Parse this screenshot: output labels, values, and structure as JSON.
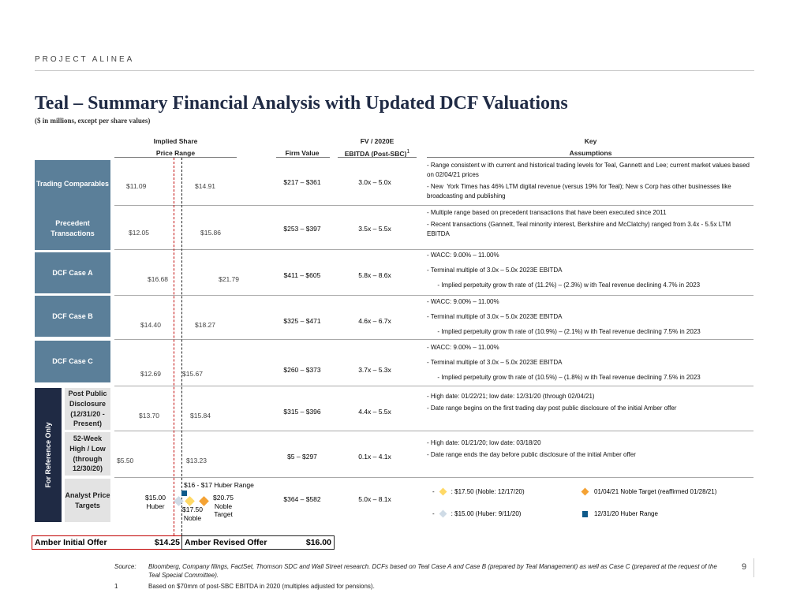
{
  "header": {
    "project": "PROJECT ALINEA",
    "title": "Teal – Summary Financial Analysis with Updated DCF Valuations",
    "subtitle": "($ in millions, except per share values)"
  },
  "columns": {
    "price_1": "Implied Share",
    "price_2": "Price Range",
    "firm_value": "Firm Value",
    "mult_1": "FV / 2020E",
    "mult_2": "EBITDA (Post-SBC)",
    "mult_sup": "1",
    "key_1": "Key",
    "key_2": "Assumptions"
  },
  "rows": [
    {
      "label": "Trading Comparables",
      "low": "$11.09",
      "high": "$14.91",
      "firm_value": "$217 – $361",
      "multiple": "3.0x – 5.0x",
      "assumptions": [
        "- Range consistent w ith current and historical trading levels for Teal, Gannett and Lee; current market values based on 02/04/21 prices",
        "- New  York Times has 46% LTM digital revenue (versus 19% for Teal); New s Corp has other businesses like broadcasting and publishing"
      ]
    },
    {
      "label": "Precedent Transactions",
      "low": "$12.05",
      "high": "$15.86",
      "firm_value": "$253 – $397",
      "multiple": "3.5x – 5.5x",
      "assumptions": [
        "- Multiple range based on precedent transactions that have been executed since 2011",
        "- Recent transactions (Gannett, Teal minority interest, Berkshire and McClatchy) ranged from 3.4x - 5.5x LTM EBITDA"
      ]
    },
    {
      "label": "DCF Case A",
      "low": "$16.68",
      "high": "$21.79",
      "firm_value": "$411 – $605",
      "multiple": "5.8x – 8.6x",
      "assumptions": [
        "- WACC: 9.00% – 11.00%",
        "- Terminal multiple of 3.0x – 5.0x 2023E EBITDA",
        "      - Implied perpetuity grow th rate of (11.2%) – (2.3%) w ith Teal revenue declining 4.7% in 2023"
      ]
    },
    {
      "label": "DCF Case B",
      "low": "$14.40",
      "high": "$18.27",
      "firm_value": "$325 – $471",
      "multiple": "4.6x – 6.7x",
      "assumptions": [
        "- WACC: 9.00% – 11.00%",
        "- Terminal multiple of 3.0x – 5.0x 2023E EBITDA",
        "      - Implied perpetuity grow th rate of (10.9%) – (2.1%) w ith Teal revenue declining 7.5% in 2023"
      ]
    },
    {
      "label": "DCF Case C",
      "low": "$12.69",
      "high": "$15.67",
      "firm_value": "$260 – $373",
      "multiple": "3.7x – 5.3x",
      "assumptions": [
        "- WACC: 9.00% – 11.00%",
        "- Terminal multiple of 3.0x – 5.0x 2023E EBITDA",
        "      - Implied perpetuity grow th rate of (10.5%) – (1.8%) w ith Teal revenue declining 7.5% in 2023"
      ]
    },
    {
      "label": "Post Public Disclosure (12/31/20 - Present)",
      "low": "$13.70",
      "high": "$15.84",
      "firm_value": "$315 – $396",
      "multiple": "4.4x – 5.5x",
      "assumptions": [
        "- High date: 01/22/21; low date: 12/31/20 (through 02/04/21)",
        "- Date range begins on the first trading day post public disclosure of the initial Amber offer"
      ]
    },
    {
      "label": "52-Week High / Low (through 12/30/20)",
      "low": "$5.50",
      "high": "$13.23",
      "firm_value": "$5 – $297",
      "multiple": "0.1x – 4.1x",
      "assumptions": [
        "- High date: 01/21/20; low date: 03/18/20",
        "- Date range ends the day before public disclosure of the initial Amber offer"
      ]
    },
    {
      "label": "Analyst Price Targets",
      "firm_value": "$364 – $582",
      "multiple": "5.0x – 8.1x"
    }
  ],
  "reference_label": "For Reference Only",
  "analyst": {
    "huber_range": "$16 - $17 Huber Range",
    "huber": "$15.00\nHuber",
    "noble": "$17.50\nNoble",
    "noble_target": "$20.75\nNoble\nTarget"
  },
  "legend": {
    "noble": ": $17.50 (Noble: 12/17/20)",
    "huber": ": $15.00 (Huber: 9/11/20)",
    "noble_target": "01/04/21 Noble Target (reaffirmed 01/28/21)",
    "huber_range": "12/31/20 Huber Range"
  },
  "offers": {
    "initial_label": "Amber Initial Offer",
    "initial_value": "$14.25",
    "revised_label": "Amber Revised Offer",
    "revised_value": "$16.00"
  },
  "footer": {
    "source_label": "Source:",
    "source": "Bloomberg, Company filings, FactSet, Thomson SDC and Wall Street research. DCFs based on Teal Case A and Case B (prepared by Teal Management) as well as Case C (prepared at the request of the Teal Special Committee).",
    "note_num": "1",
    "note": "Based on $70mm of post-SBC EBITDA in 2020 (multiples adjusted for pensions).",
    "page": "9"
  },
  "colors": {
    "row_label": "#5b7f99",
    "reference": "#1f2a44",
    "initial_offer": "#c00000",
    "noble": "#ffd966",
    "noble_target": "#f4a234",
    "huber": "#cfdbe6",
    "huber_range": "#0f5a8a"
  }
}
